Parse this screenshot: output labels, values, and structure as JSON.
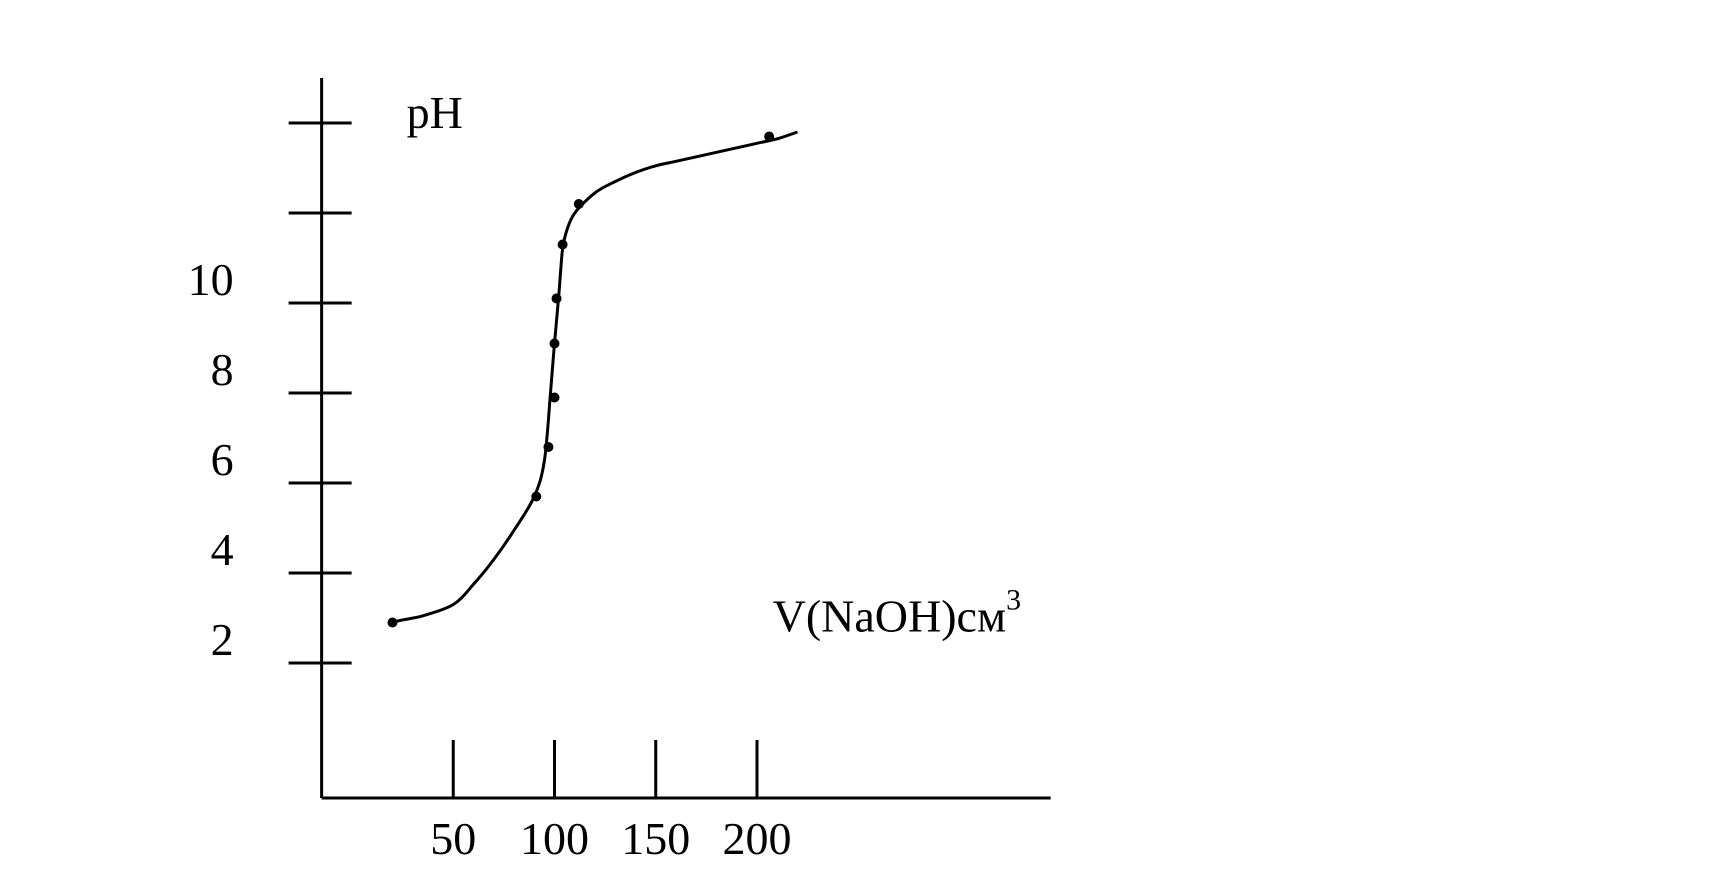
{
  "chart_data": {
    "type": "line",
    "title": "",
    "xlabel": "V(NaOH)см",
    "xlabel_superscript": "3",
    "ylabel": "pH",
    "xlim": [
      -15,
      345
    ],
    "ylim": [
      -1,
      15
    ],
    "x_ticks": [
      50,
      100,
      150,
      200
    ],
    "x_tick_labels": [
      "50",
      "100",
      "150",
      "200"
    ],
    "y_ticks": [
      2,
      4,
      6,
      8,
      10,
      12,
      14
    ],
    "y_tick_labels": [
      "2",
      "4",
      "6",
      "8",
      "10",
      "",
      ""
    ],
    "grid": false,
    "legend": "none",
    "line_color": "#000000",
    "curve": {
      "x": [
        20,
        24,
        35,
        50,
        60,
        70,
        80,
        90,
        95,
        98,
        100,
        102,
        103,
        104,
        106,
        110,
        120,
        130,
        140,
        150,
        160,
        170,
        180,
        190,
        200,
        210,
        220
      ],
      "y": [
        2.9,
        2.95,
        3.05,
        3.3,
        3.75,
        4.3,
        4.95,
        5.7,
        6.5,
        8.0,
        9.1,
        10.1,
        10.7,
        11.2,
        11.6,
        12.0,
        12.45,
        12.7,
        12.9,
        13.05,
        13.15,
        13.25,
        13.35,
        13.45,
        13.55,
        13.65,
        13.8
      ]
    },
    "points": {
      "x": [
        20,
        91,
        97,
        100,
        100,
        101,
        104,
        112,
        206
      ],
      "y": [
        2.9,
        5.7,
        6.8,
        7.9,
        9.1,
        10.1,
        11.3,
        12.2,
        13.7
      ]
    }
  }
}
